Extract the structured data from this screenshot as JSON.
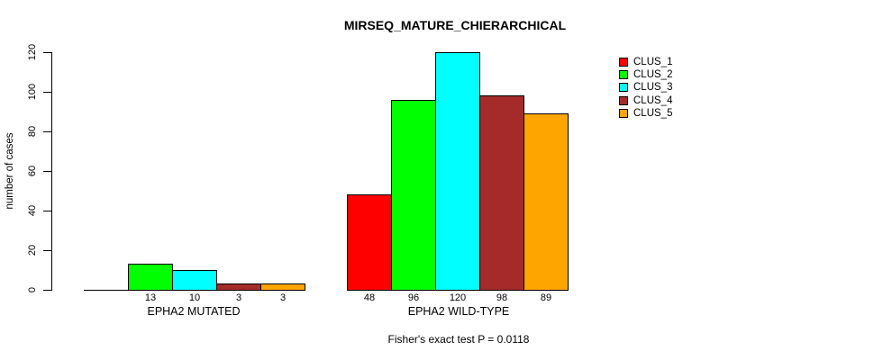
{
  "chart_data": {
    "type": "bar",
    "title": "MIRSEQ_MATURE_CHIERARCHICAL",
    "ylabel": "number of cases",
    "xlabel": "",
    "ylim": [
      0,
      120
    ],
    "yticks": [
      0,
      20,
      40,
      60,
      80,
      100,
      120
    ],
    "grid": false,
    "legend_position": "right",
    "annotation": "Fisher's exact test P = 0.0118",
    "categories": [
      "EPHA2 MUTATED",
      "EPHA2 WILD-TYPE"
    ],
    "series": [
      {
        "name": "CLUS_1",
        "color": "#ff0000",
        "values": [
          0,
          48
        ]
      },
      {
        "name": "CLUS_2",
        "color": "#00ff00",
        "values": [
          13,
          96
        ]
      },
      {
        "name": "CLUS_3",
        "color": "#00ffff",
        "values": [
          10,
          120
        ]
      },
      {
        "name": "CLUS_4",
        "color": "#a52a2a",
        "values": [
          3,
          98
        ]
      },
      {
        "name": "CLUS_5",
        "color": "#ffa500",
        "values": [
          3,
          89
        ]
      }
    ],
    "bar_value_labels_shown": [
      13,
      10,
      3,
      3,
      48,
      96,
      120,
      98,
      89
    ]
  },
  "colors": {
    "background": "#ffffff",
    "axis": "#000000",
    "text": "#000000"
  }
}
